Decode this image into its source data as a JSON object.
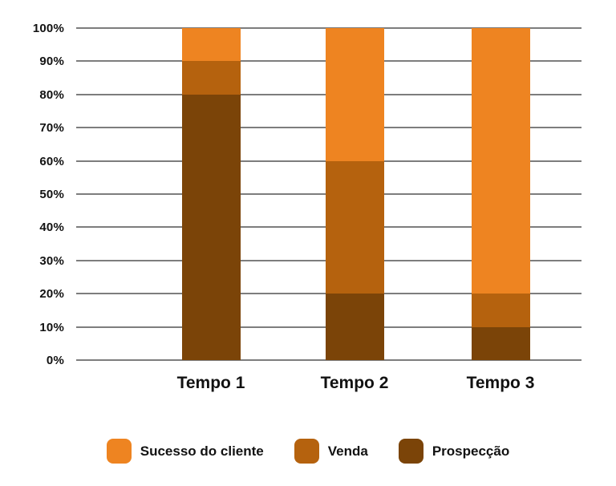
{
  "chart_data": {
    "type": "bar",
    "subtype": "stacked-column-100",
    "title": "",
    "xlabel": "",
    "ylabel": "",
    "categories": [
      "Tempo 1",
      "Tempo 2",
      "Tempo 3"
    ],
    "series": [
      {
        "name": "Sucesso do cliente",
        "color": "#EE8421",
        "values": [
          10,
          40,
          80
        ]
      },
      {
        "name": "Venda",
        "color": "#B5620E",
        "values": [
          10,
          40,
          10
        ]
      },
      {
        "name": "Prospecção",
        "color": "#7B4408",
        "values": [
          80,
          20,
          10
        ]
      }
    ],
    "stack_order_top_to_bottom": [
      "Sucesso do cliente",
      "Venda",
      "Prospecção"
    ],
    "y_axis": {
      "min": 0,
      "max": 100,
      "tick_labels": [
        "100%",
        "90%",
        "80%",
        "70%",
        "60%",
        "50%",
        "40%",
        "30%",
        "20%",
        "10%",
        "0%"
      ],
      "grid": true
    },
    "legend": {
      "position": "bottom",
      "items": [
        {
          "label": "Sucesso do cliente",
          "color": "#EE8421"
        },
        {
          "label": "Venda",
          "color": "#B5620E"
        },
        {
          "label": "Prospecção",
          "color": "#7B4408"
        }
      ]
    }
  },
  "colors": {
    "background": "#FFFFFF",
    "gridline": "#7D7D7D",
    "text": "#121212"
  }
}
